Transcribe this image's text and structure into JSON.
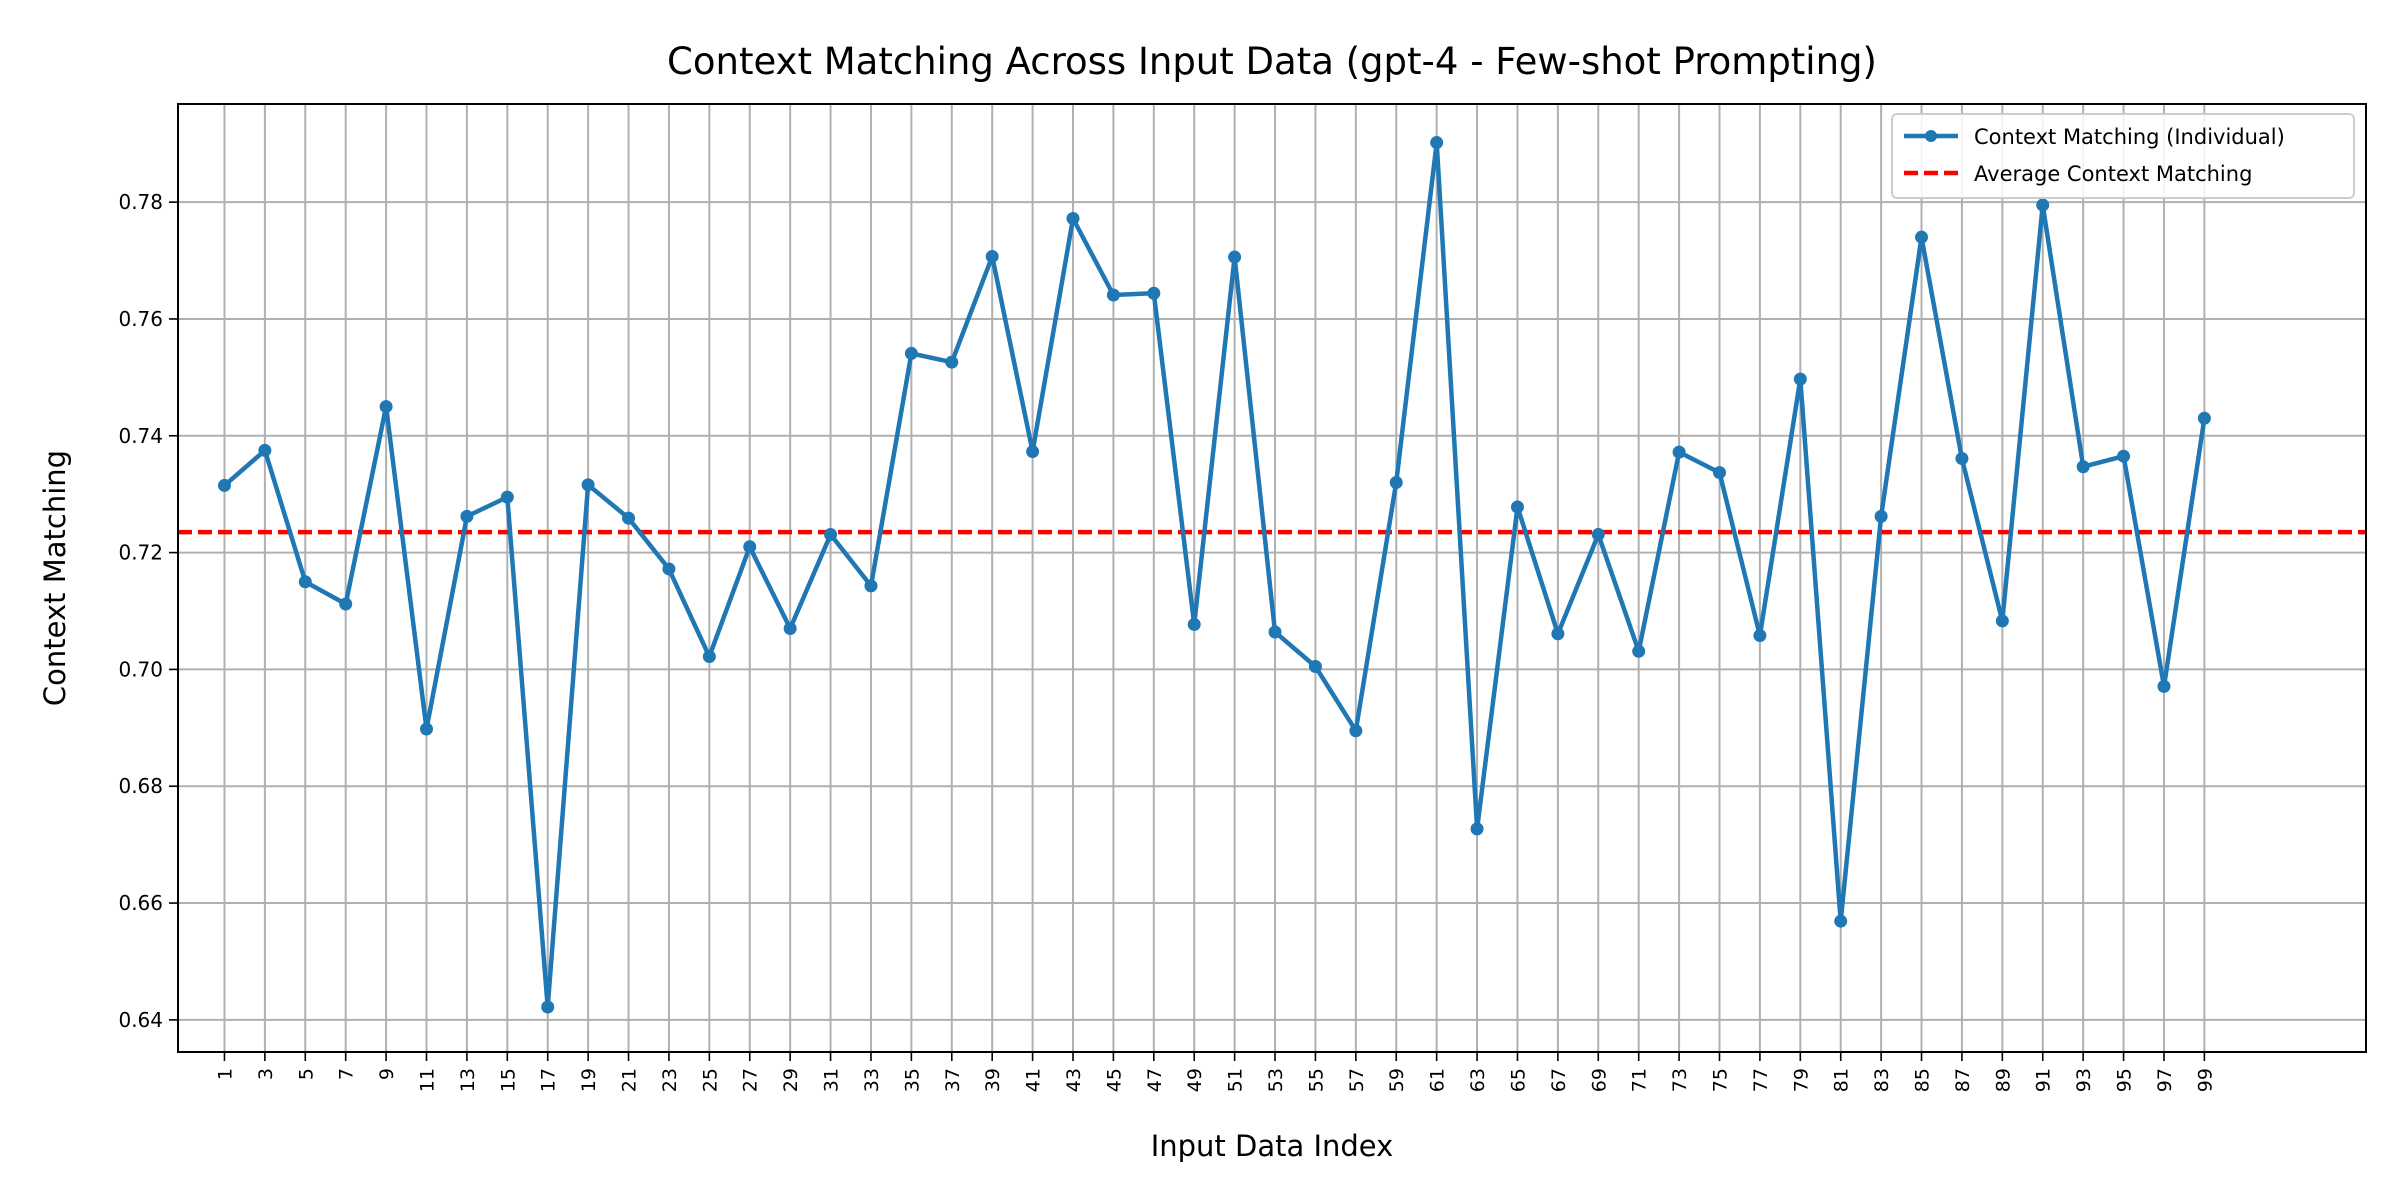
{
  "chart_data": {
    "type": "line",
    "title": "Context Matching Across Input Data (gpt-4 - Few-shot Prompting)",
    "xlabel": "Input Data Index",
    "ylabel": "Context Matching",
    "xlim": [
      -1.3,
      107
    ],
    "ylim": [
      0.6345,
      0.7968
    ],
    "x_ticks": [
      1,
      3,
      5,
      7,
      9,
      11,
      13,
      15,
      17,
      19,
      21,
      23,
      25,
      27,
      29,
      31,
      33,
      35,
      37,
      39,
      41,
      43,
      45,
      47,
      49,
      51,
      53,
      55,
      57,
      59,
      61,
      63,
      65,
      67,
      69,
      71,
      73,
      75,
      77,
      79,
      81,
      83,
      85,
      87,
      89,
      91,
      93,
      95,
      97,
      99
    ],
    "y_ticks": [
      0.64,
      0.66,
      0.68,
      0.7,
      0.72,
      0.74,
      0.76,
      0.78
    ],
    "y_tick_labels": [
      "0.64",
      "0.66",
      "0.68",
      "0.70",
      "0.72",
      "0.74",
      "0.76",
      "0.78"
    ],
    "grid": true,
    "legend_position": "top-right",
    "series": [
      {
        "name": "Context Matching (Individual)",
        "color": "#1f77b4",
        "x": [
          1,
          3,
          5,
          7,
          9,
          11,
          13,
          15,
          17,
          19,
          21,
          23,
          25,
          27,
          29,
          31,
          33,
          35,
          37,
          39,
          41,
          43,
          45,
          47,
          49,
          51,
          53,
          55,
          57,
          59,
          61,
          63,
          65,
          67,
          69,
          71,
          73,
          75,
          77,
          79,
          81,
          83,
          85,
          87,
          89,
          91,
          93,
          95,
          97,
          99
        ],
        "values": [
          0.7315,
          0.7375,
          0.715,
          0.7112,
          0.745,
          0.6898,
          0.7262,
          0.7295,
          0.6422,
          0.7316,
          0.7259,
          0.7172,
          0.7022,
          0.721,
          0.707,
          0.7231,
          0.7143,
          0.7541,
          0.7526,
          0.7707,
          0.7373,
          0.7772,
          0.7641,
          0.7644,
          0.7077,
          0.7706,
          0.7064,
          0.7005,
          0.6895,
          0.732,
          0.7902,
          0.6727,
          0.7278,
          0.7061,
          0.7231,
          0.7031,
          0.7372,
          0.7337,
          0.7058,
          0.7497,
          0.6569,
          0.7262,
          0.774,
          0.7361,
          0.7083,
          0.7795,
          0.7347,
          0.7365,
          0.6971,
          0.743
        ]
      },
      {
        "name": "Average Context Matching",
        "color": "#ff0000",
        "style": "dashed",
        "constant": 0.7235
      }
    ]
  }
}
